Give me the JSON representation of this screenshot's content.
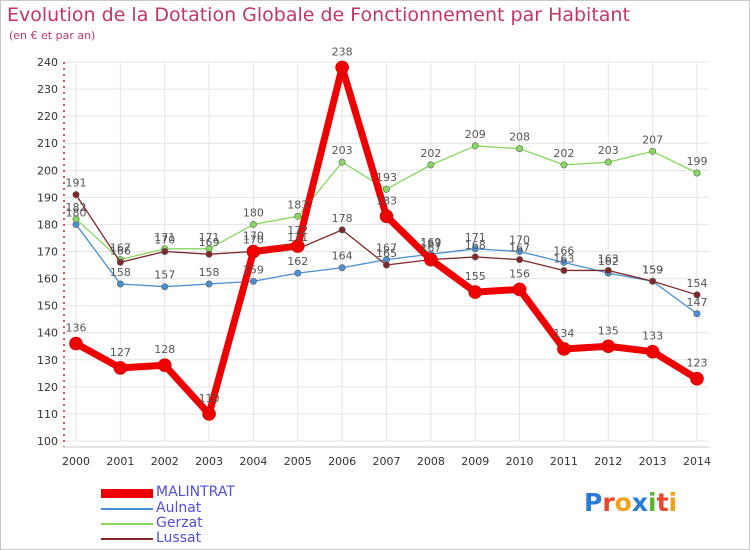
{
  "header": {
    "title": "Evolution de la Dotation Globale de Fonctionnement par Habitant",
    "subtitle": "(en € et par an)"
  },
  "logo": {
    "text": "Proxiti",
    "letters": [
      "P",
      "r",
      "o",
      "x",
      "i",
      "t",
      "i"
    ],
    "colors": [
      "#2a7bd8",
      "#e8482c",
      "#f0a020",
      "#2a7bd8",
      "#5cb531",
      "#e8482c",
      "#f0a020"
    ]
  },
  "colors": {
    "grid": "#e4e4e4",
    "axis": "#d02020",
    "tick_label": "#333333",
    "value_label": "#555555"
  },
  "chart_data": {
    "type": "line",
    "title": "Evolution de la Dotation Globale de Fonctionnement par Habitant",
    "subtitle": "(en € et par an)",
    "xlabel": "",
    "ylabel": "",
    "ylim": [
      100,
      240
    ],
    "yticks": [
      100,
      110,
      120,
      130,
      140,
      150,
      160,
      170,
      180,
      190,
      200,
      210,
      220,
      230,
      240
    ],
    "x": [
      "2000",
      "2001",
      "2002",
      "2003",
      "2004",
      "2005",
      "2006",
      "2007",
      "2008",
      "2009",
      "2010",
      "2011",
      "2012",
      "2013",
      "2014"
    ],
    "grid": true,
    "legend_position": "bottom-left",
    "series": [
      {
        "name": "MALINTRAT",
        "color": "#ee0000",
        "emphasis": true,
        "values": [
          136,
          127,
          128,
          110,
          170,
          172,
          238,
          183,
          167,
          155,
          156,
          134,
          135,
          133,
          123
        ]
      },
      {
        "name": "Aulnat",
        "color": "#4a8fd0",
        "values": [
          180,
          158,
          157,
          158,
          159,
          162,
          164,
          167,
          169,
          171,
          170,
          166,
          162,
          159,
          147
        ]
      },
      {
        "name": "Gerzat",
        "color": "#88d860",
        "values": [
          182,
          167,
          171,
          171,
          180,
          183,
          203,
          193,
          202,
          209,
          208,
          202,
          203,
          207,
          199
        ]
      },
      {
        "name": "Lussat",
        "color": "#802828",
        "values": [
          191,
          166,
          170,
          169,
          170,
          171,
          178,
          165,
          167,
          168,
          167,
          163,
          163,
          159,
          154
        ]
      }
    ]
  }
}
